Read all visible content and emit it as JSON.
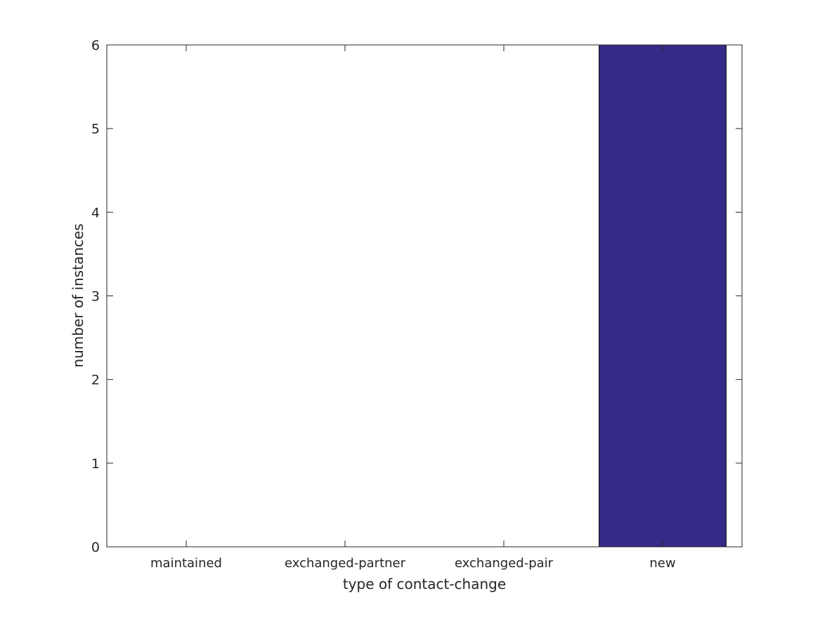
{
  "chart_data": {
    "type": "bar",
    "categories": [
      "maintained",
      "exchanged-partner",
      "exchanged-pair",
      "new"
    ],
    "values": [
      0,
      0,
      0,
      6
    ],
    "title": "",
    "xlabel": "type of contact-change",
    "ylabel": "number of instances",
    "ylim": [
      0,
      6
    ],
    "xlim": [
      0.5,
      4.5
    ],
    "yticks": [
      0,
      1,
      2,
      3,
      4,
      5,
      6
    ],
    "grid": false,
    "bar_color": "#352a87",
    "axis_color": "#262626"
  }
}
